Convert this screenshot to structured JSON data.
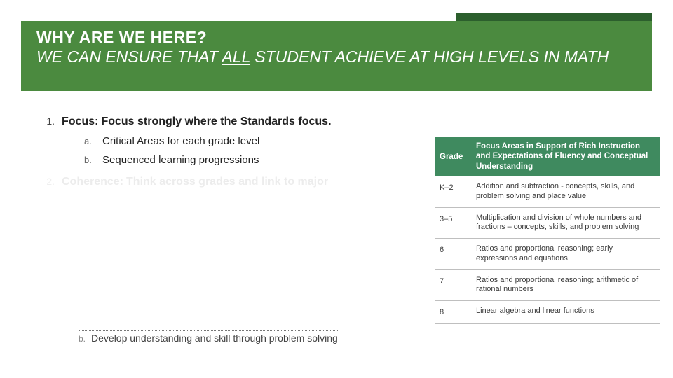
{
  "colors": {
    "banner_bg": "#4b8a3f",
    "accent": "#2c5f2d",
    "banner_text": "#ffffff",
    "table_head_bg": "#3f8a5f",
    "table_border": "#bfbfbf"
  },
  "header": {
    "line1": "WHY ARE WE HERE?",
    "line2_pre": "WE CAN ENSURE THAT ",
    "line2_underlined": "ALL",
    "line2_post": " STUDENT ACHIEVE AT HIGH LEVELS IN MATH"
  },
  "points": [
    {
      "num": "1.",
      "label": "Focus:",
      "text": "Focus strongly where the Standards focus.",
      "subs": [
        {
          "letter": "a.",
          "text": "Critical Areas for each grade level"
        },
        {
          "letter": "b.",
          "text": "Sequenced learning progressions"
        }
      ]
    },
    {
      "num": "2.",
      "label": "Coherence:",
      "text": "Think across grades and link to major",
      "subs": []
    }
  ],
  "stray_text": "Develop understanding and skill through problem solving",
  "table": {
    "head": {
      "grade": "Grade",
      "focus": "Focus Areas in Support of Rich Instruction and Expectations of Fluency and Conceptual Understanding"
    },
    "rows": [
      {
        "grade": "K–2",
        "focus": "Addition and  subtraction  - concepts, skills, and problem solving and place value"
      },
      {
        "grade": "3–5",
        "focus": "Multiplication and division of whole numbers and fractions – concepts, skills, and problem solving"
      },
      {
        "grade": "6",
        "focus": "Ratios and proportional reasoning; early expressions and equations"
      },
      {
        "grade": "7",
        "focus": "Ratios and proportional reasoning; arithmetic of rational numbers"
      },
      {
        "grade": "8",
        "focus": "Linear algebra and linear functions"
      }
    ]
  }
}
